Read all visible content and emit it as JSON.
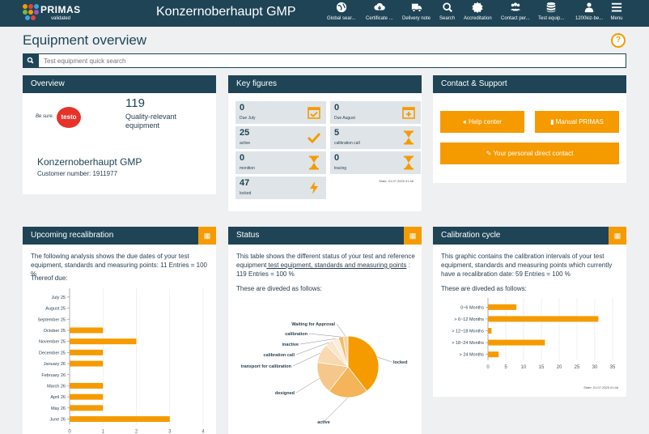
{
  "header": {
    "logo_text": "PRIMAS",
    "logo_sub": "validated",
    "title": "Konzernoberhaupt GMP",
    "nav": [
      {
        "label": "Global sear...",
        "icon": "globe-icon"
      },
      {
        "label": "Certificate ...",
        "icon": "cloud-download-icon"
      },
      {
        "label": "Delivery note",
        "icon": "truck-icon"
      },
      {
        "label": "Search",
        "icon": "search-icon"
      },
      {
        "label": "Accreditation",
        "icon": "seal-icon"
      },
      {
        "label": "Contact per...",
        "icon": "people-icon"
      },
      {
        "label": "Test equip...",
        "icon": "database-icon"
      },
      {
        "label": "1200kiz-be...",
        "icon": "user-icon"
      },
      {
        "label": "Menu",
        "icon": "hamburger-icon"
      }
    ]
  },
  "page": {
    "title": "Equipment overview",
    "help": "?",
    "search_placeholder": "Test equipment quick search"
  },
  "overview": {
    "head": "Overview",
    "logo_prefix": "Be sure.",
    "logo_brand": "testo",
    "count": "119",
    "count_label": "Quality-relevant equipment",
    "company": "Konzernoberhaupt GMP",
    "customer": "Customer number: 1911977"
  },
  "key_figures": {
    "head": "Key figures",
    "state": "State: 01.07.2025 01:48",
    "tiles": [
      {
        "num": "0",
        "label": "Due July",
        "icon": "calendar-check-icon"
      },
      {
        "num": "0",
        "label": "Due August",
        "icon": "calendar-plus-icon"
      },
      {
        "num": "25",
        "label": "active",
        "icon": "check-icon"
      },
      {
        "num": "5",
        "label": "calibration call",
        "icon": "hourglass-icon"
      },
      {
        "num": "0",
        "label": "monition",
        "icon": "hourglass-icon"
      },
      {
        "num": "0",
        "label": "tracing",
        "icon": "hourglass-icon"
      },
      {
        "num": "47",
        "label": "locked",
        "icon": "bolt-icon"
      }
    ]
  },
  "contact": {
    "head": "Contact & Support",
    "help_center": "Help center",
    "manual": "Manual PRIMAS",
    "direct": "Your personal direct contact"
  },
  "recal": {
    "head": "Upcoming recalibration",
    "desc": "The following analysis shows the due dates of your test equipment, standards and measuring points: 11 Entries = 100 %",
    "thereof": "Thereof due:"
  },
  "status": {
    "head": "Status",
    "desc_pre": "This table shows the different status of your test and reference equipment",
    "desc_link": " test equipment, standards and measuring points",
    "desc_post": " : 119 Entries = 100 %",
    "divided": "These are diveded as follows:"
  },
  "cycle": {
    "head": "Calibration cycle",
    "desc": "This graphic contains the calibration intervals of your test equipment, standards and measuring points which currently have a recalibration date: 59 Entries = 100 %",
    "divided": "These are diveded as follows:",
    "state": "State: 01.07.2025 01:48"
  },
  "chart_data": [
    {
      "type": "bar",
      "orientation": "horizontal",
      "categories": [
        "July 25",
        "August 25",
        "September 25",
        "October 25",
        "November 25",
        "December 25",
        "January 26",
        "February 26",
        "March 26",
        "April 26",
        "May 26",
        "June 26"
      ],
      "values": [
        0,
        0,
        0,
        1,
        2,
        1,
        1,
        0,
        1,
        1,
        1,
        3
      ],
      "xlim": [
        0,
        4
      ],
      "xticks": [
        "0",
        "1",
        "2",
        "3",
        "4"
      ],
      "color": "#f59b00"
    },
    {
      "type": "pie",
      "labels": [
        "locked",
        "active",
        "designed",
        "transport for calibration",
        "calibration call",
        "inactive",
        "calibration",
        "Waiting for Approval"
      ],
      "values": [
        47,
        25,
        20,
        12,
        5,
        4,
        3,
        3
      ],
      "colors": [
        "#f59b00",
        "#f5b45a",
        "#f6c78a",
        "#f8d9b0",
        "#fae6cb",
        "#fbeddb",
        "#f7ba6e",
        "#f9d5a4"
      ]
    },
    {
      "type": "bar",
      "orientation": "horizontal",
      "categories": [
        "0~6 Months",
        "> 6~12 Months",
        "> 12~18 Months",
        "> 18~24 Months",
        "> 24 Months"
      ],
      "values": [
        8,
        31,
        1,
        16,
        3
      ],
      "xlim": [
        0,
        35
      ],
      "xticks": [
        "0",
        "5",
        "10",
        "15",
        "20",
        "25",
        "30",
        "35"
      ],
      "color": "#f59b00"
    }
  ]
}
